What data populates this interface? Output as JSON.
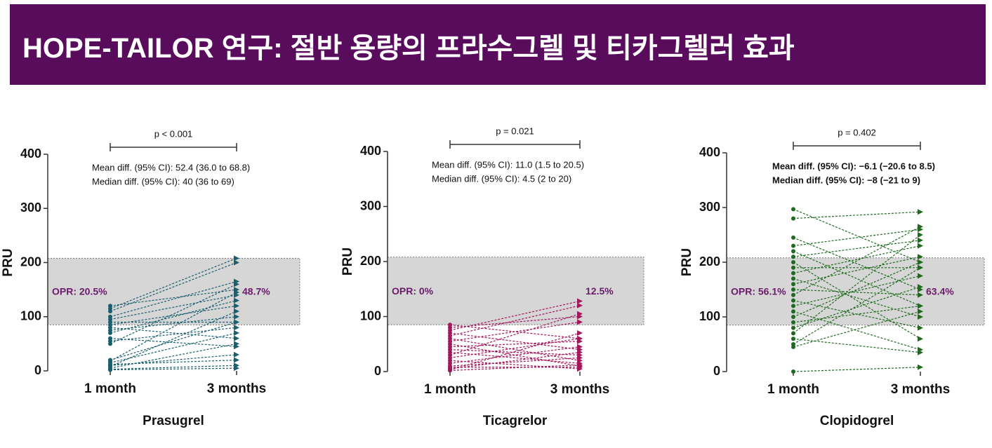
{
  "title": "HOPE-TAILOR 연구: 절반 용량의 프라수그렐 및 티카그렐러 효과",
  "chart_data": [
    {
      "type": "paired",
      "x_label": "Prasugrel",
      "y_label": "PRU",
      "categories": [
        "1 month",
        "3 months"
      ],
      "color": "#1b5f6f",
      "ylim": [
        0,
        400
      ],
      "yticks": [
        0,
        100,
        200,
        300,
        400
      ],
      "band": [
        85,
        208
      ],
      "p_value": "p < 0.001",
      "annotations": [
        "Mean diff. (95% CI): 52.4 (36.0 to 68.8)",
        "Median diff. (95% CI): 40 (36 to 69)"
      ],
      "opr_labels": [
        "OPR: 20.5%",
        "48.7%"
      ],
      "pairs": [
        [
          120,
          150
        ],
        [
          115,
          208
        ],
        [
          110,
          200
        ],
        [
          100,
          165
        ],
        [
          95,
          140
        ],
        [
          90,
          90
        ],
        [
          85,
          120
        ],
        [
          80,
          60
        ],
        [
          75,
          100
        ],
        [
          70,
          130
        ],
        [
          60,
          45
        ],
        [
          55,
          80
        ],
        [
          50,
          160
        ],
        [
          20,
          90
        ],
        [
          15,
          70
        ],
        [
          10,
          30
        ],
        [
          8,
          110
        ],
        [
          5,
          50
        ],
        [
          3,
          10
        ],
        [
          2,
          5
        ],
        [
          18,
          145
        ],
        [
          12,
          20
        ]
      ]
    },
    {
      "type": "paired",
      "x_label": "Ticagrelor",
      "y_label": "PRU",
      "categories": [
        "1 month",
        "3 months"
      ],
      "color": "#a3175b",
      "ylim": [
        0,
        400
      ],
      "yticks": [
        0,
        100,
        200,
        300,
        400
      ],
      "band": [
        85,
        208
      ],
      "p_value": "p = 0.021",
      "annotations": [
        "Mean diff. (95% CI): 11.0 (1.5 to 20.5)",
        "Median diff. (95% CI): 4.5 (2 to 20)"
      ],
      "opr_labels": [
        "OPR: 0%",
        "12.5%"
      ],
      "pairs": [
        [
          85,
          60
        ],
        [
          80,
          100
        ],
        [
          75,
          128
        ],
        [
          70,
          40
        ],
        [
          65,
          120
        ],
        [
          60,
          20
        ],
        [
          55,
          90
        ],
        [
          50,
          10
        ],
        [
          45,
          55
        ],
        [
          40,
          30
        ],
        [
          35,
          15
        ],
        [
          30,
          105
        ],
        [
          25,
          60
        ],
        [
          20,
          5
        ],
        [
          15,
          45
        ],
        [
          10,
          25
        ],
        [
          8,
          8
        ],
        [
          5,
          35
        ],
        [
          3,
          70
        ],
        [
          2,
          12
        ]
      ]
    },
    {
      "type": "paired",
      "x_label": "Clopidogrel",
      "y_label": "PRU",
      "categories": [
        "1 month",
        "3 months"
      ],
      "color": "#1e6b1e",
      "ylim": [
        0,
        400
      ],
      "yticks": [
        0,
        100,
        200,
        300,
        400
      ],
      "band": [
        85,
        208
      ],
      "p_value": "p = 0.402",
      "annotations": [
        "Mean diff. (95% CI): −6.1 (−20.6 to 8.5)",
        "Median diff. (95% CI): −8 (−21 to 9)"
      ],
      "opr_labels": [
        "OPR: 56.1%",
        "63.4%"
      ],
      "pairs": [
        [
          297,
          200
        ],
        [
          280,
          292
        ],
        [
          245,
          150
        ],
        [
          230,
          260
        ],
        [
          220,
          120
        ],
        [
          210,
          240
        ],
        [
          200,
          60
        ],
        [
          190,
          190
        ],
        [
          180,
          230
        ],
        [
          170,
          100
        ],
        [
          160,
          210
        ],
        [
          150,
          140
        ],
        [
          140,
          265
        ],
        [
          130,
          80
        ],
        [
          120,
          175
        ],
        [
          110,
          40
        ],
        [
          100,
          200
        ],
        [
          90,
          120
        ],
        [
          80,
          155
        ],
        [
          70,
          250
        ],
        [
          60,
          35
        ],
        [
          50,
          190
        ],
        [
          45,
          110
        ],
        [
          0,
          8
        ]
      ]
    }
  ]
}
